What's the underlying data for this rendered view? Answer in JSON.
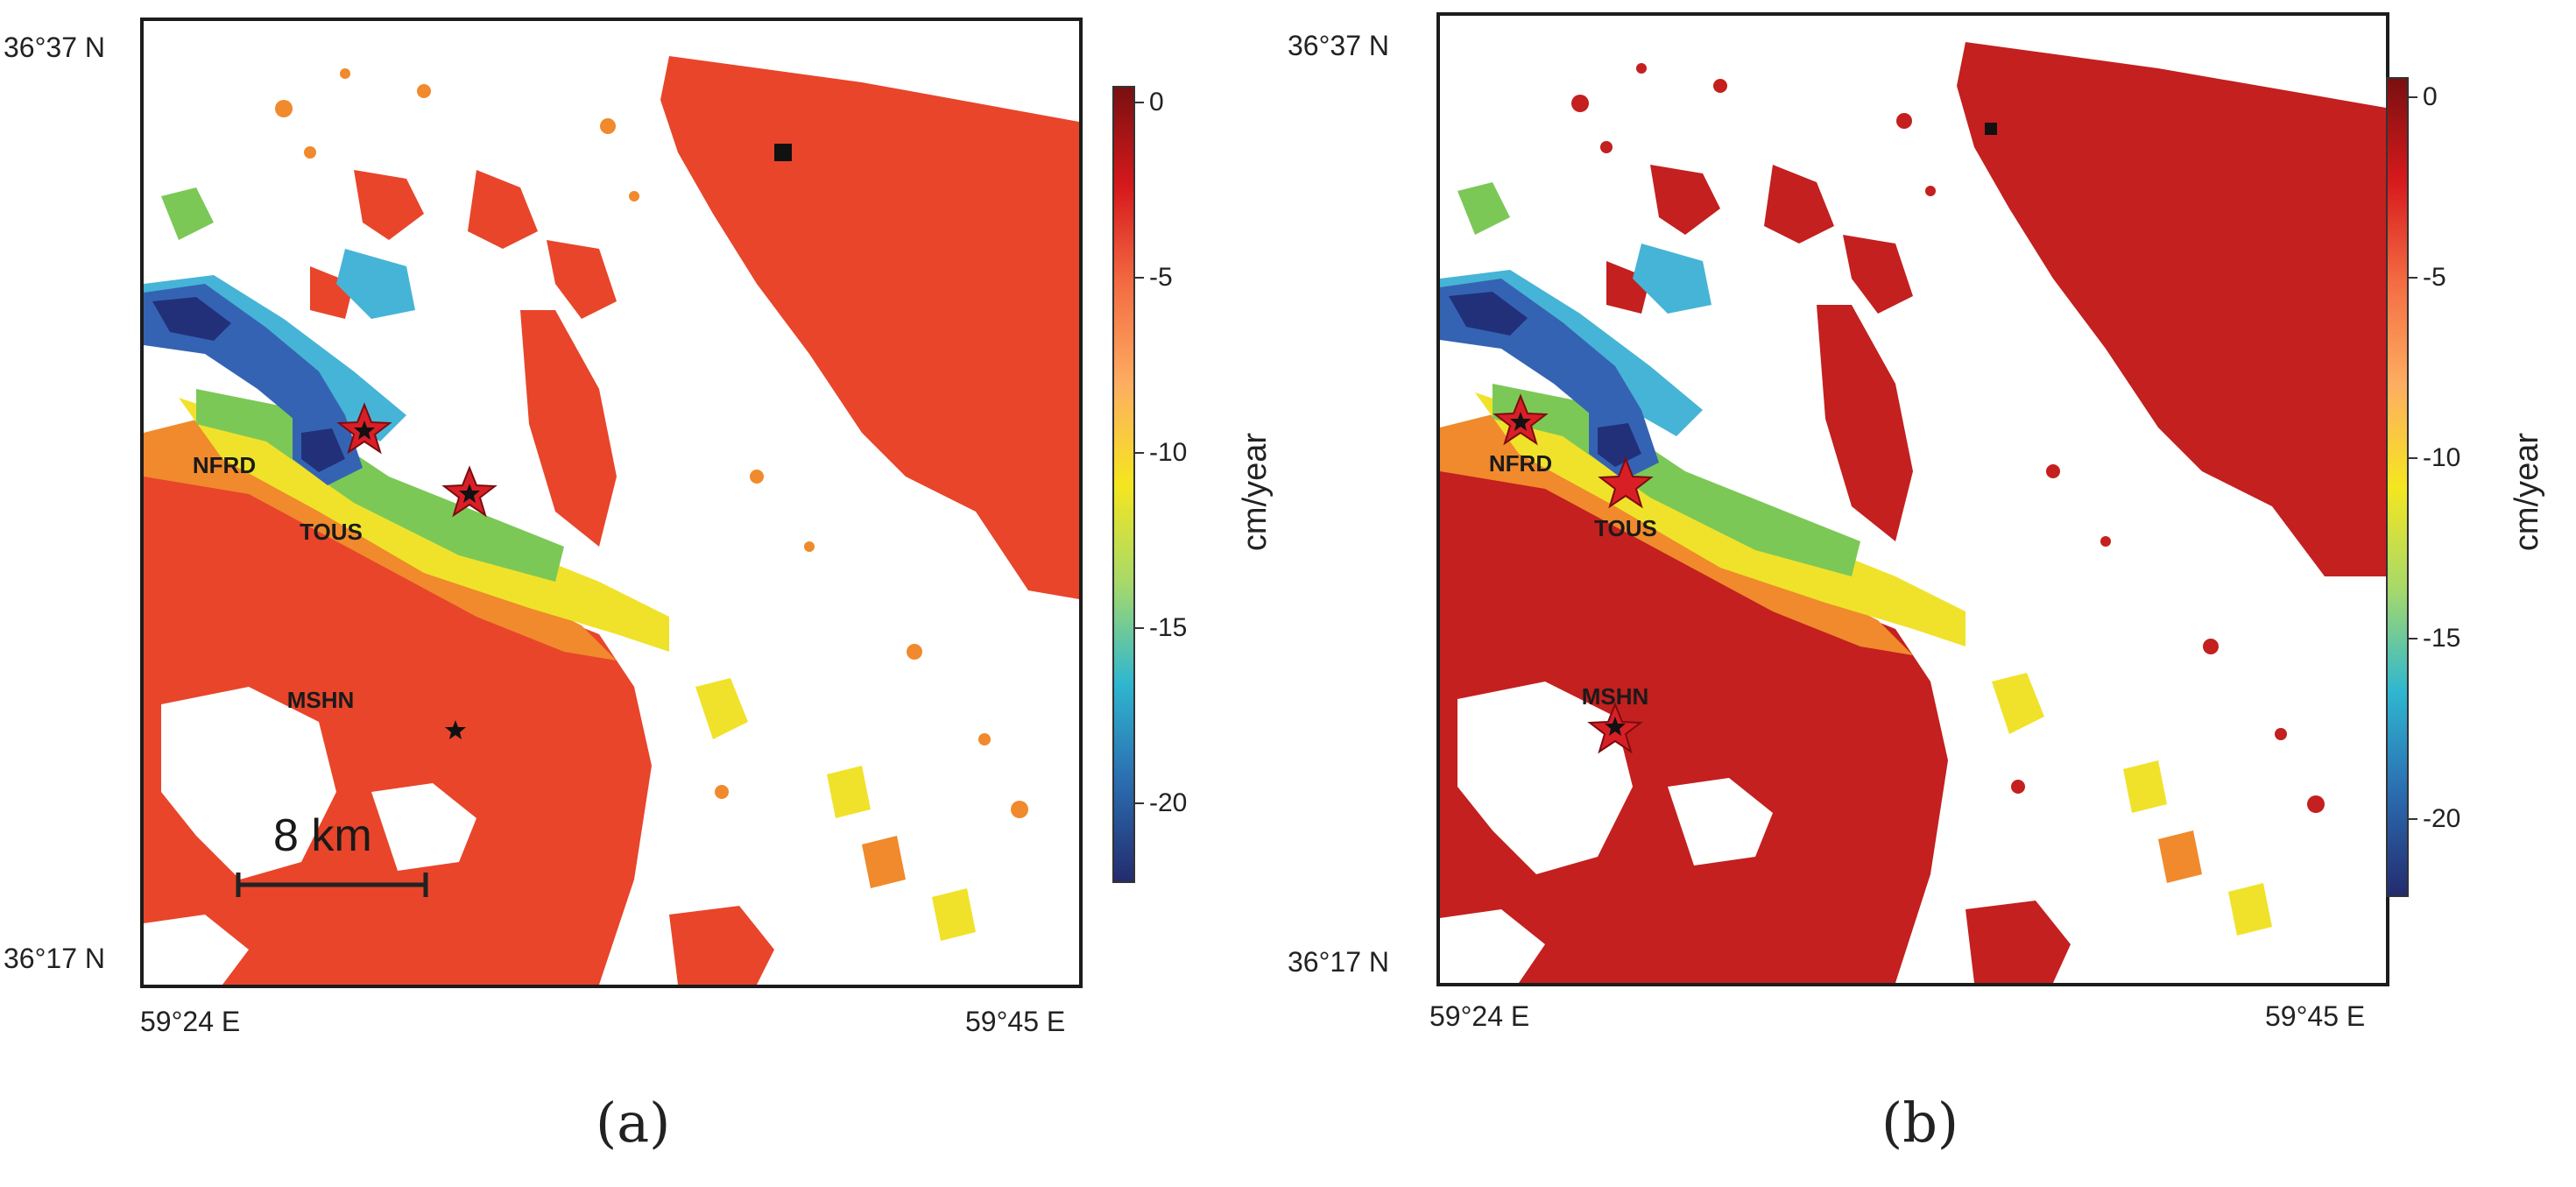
{
  "colors": {
    "red_a": "#e8452b",
    "red_b": "#c3201f",
    "orange": "#f08a2c",
    "yellow": "#f0e22a",
    "green": "#7cc857",
    "cyan": "#46b4d6",
    "blue": "#3563b3",
    "navy": "#22307a",
    "star_red": "#d91f26",
    "marker_black": "#111111"
  },
  "colorbar": {
    "unit": "cm/year",
    "ticks": [
      "0",
      "-5",
      "-10",
      "-15",
      "-20"
    ],
    "min": -22,
    "max": 0.5,
    "gradient": [
      "#7a1010",
      "#d7191c",
      "#f46d43",
      "#fdae61",
      "#f5e61f",
      "#a6d96a",
      "#2fb7d0",
      "#2b6cb0",
      "#232c6e"
    ]
  },
  "panels": [
    {
      "caption": "(a)",
      "lat_top": "36°37 N",
      "lat_bottom": "36°17 N",
      "lon_left": "59°24 E",
      "lon_right": "59°45 E",
      "stations": [
        {
          "label": "NFRD",
          "symbol": "red-star"
        },
        {
          "label": "TOUS",
          "symbol": "red-star"
        },
        {
          "label": "MSHN",
          "symbol": "black-star"
        }
      ],
      "scale_bar": "8 km"
    },
    {
      "caption": "(b)",
      "lat_top": "36°37 N",
      "lat_bottom": "36°17 N",
      "lon_left": "59°24 E",
      "lon_right": "59°45 E",
      "stations": [
        {
          "label": "NFRD",
          "symbol": "red-star"
        },
        {
          "label": "TOUS",
          "symbol": "red-star"
        },
        {
          "label": "MSHN",
          "symbol": "red-star"
        }
      ]
    }
  ]
}
